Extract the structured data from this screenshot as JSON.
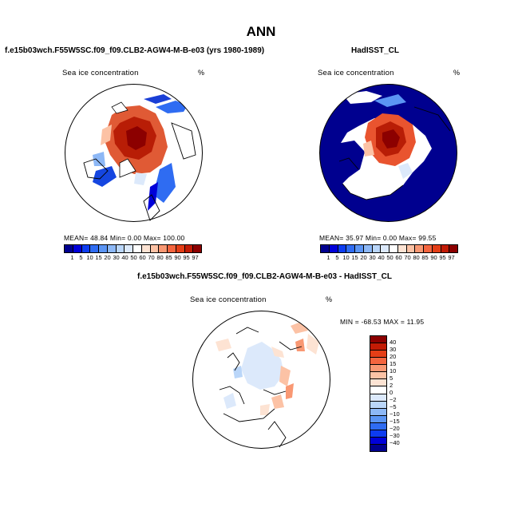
{
  "main_title": "ANN",
  "panels": {
    "model": {
      "title": "f.e15b03wch.F55W5SC.f09_f09.CLB2-AGW4-M-B-e03 (yrs 1980-1989)",
      "variable": "Sea ice concentration",
      "units": "%",
      "stats": "MEAN=    48.84   Min=     0.00   Max=   100.00"
    },
    "obs": {
      "title": "HadISST_CL",
      "variable": "Sea ice concentration",
      "units": "%",
      "stats": "MEAN=    35.97   Min=     0.00   Max=    99.55"
    },
    "diff": {
      "title": "f.e15b03wch.F55W5SC.f09_f09.CLB2-AGW4-M-B-e03 - HadISST_CL",
      "variable": "Sea ice concentration",
      "units": "%",
      "stats": "MIN = -68.53  MAX =   11.95"
    }
  },
  "abs_colorbar": {
    "labels": [
      "1",
      "5",
      "10",
      "15",
      "20",
      "30",
      "40",
      "50",
      "60",
      "70",
      "80",
      "85",
      "90",
      "95",
      "97"
    ],
    "colors": [
      "#00008f",
      "#0000d9",
      "#0d3cf0",
      "#2f6cf2",
      "#5b95f4",
      "#8db8f6",
      "#bad6f9",
      "#dce9fb",
      "#ffffff",
      "#fde3d3",
      "#fcc2a5",
      "#f99873",
      "#f4653f",
      "#e43e17",
      "#c21b05",
      "#8c0000"
    ]
  },
  "diff_colorbar": {
    "labels": [
      "40",
      "30",
      "20",
      "15",
      "10",
      "5",
      "2",
      "0",
      "−2",
      "−5",
      "−10",
      "−15",
      "−20",
      "−30",
      "−40"
    ],
    "colors": [
      "#8c0000",
      "#c21b05",
      "#e43e17",
      "#f4653f",
      "#f99873",
      "#fcc2a5",
      "#fde3d3",
      "#ffffff",
      "#dce9fb",
      "#bad6f9",
      "#8db8f6",
      "#5b95f4",
      "#2f6cf2",
      "#0d3cf0",
      "#0000d9",
      "#00008f"
    ]
  }
}
